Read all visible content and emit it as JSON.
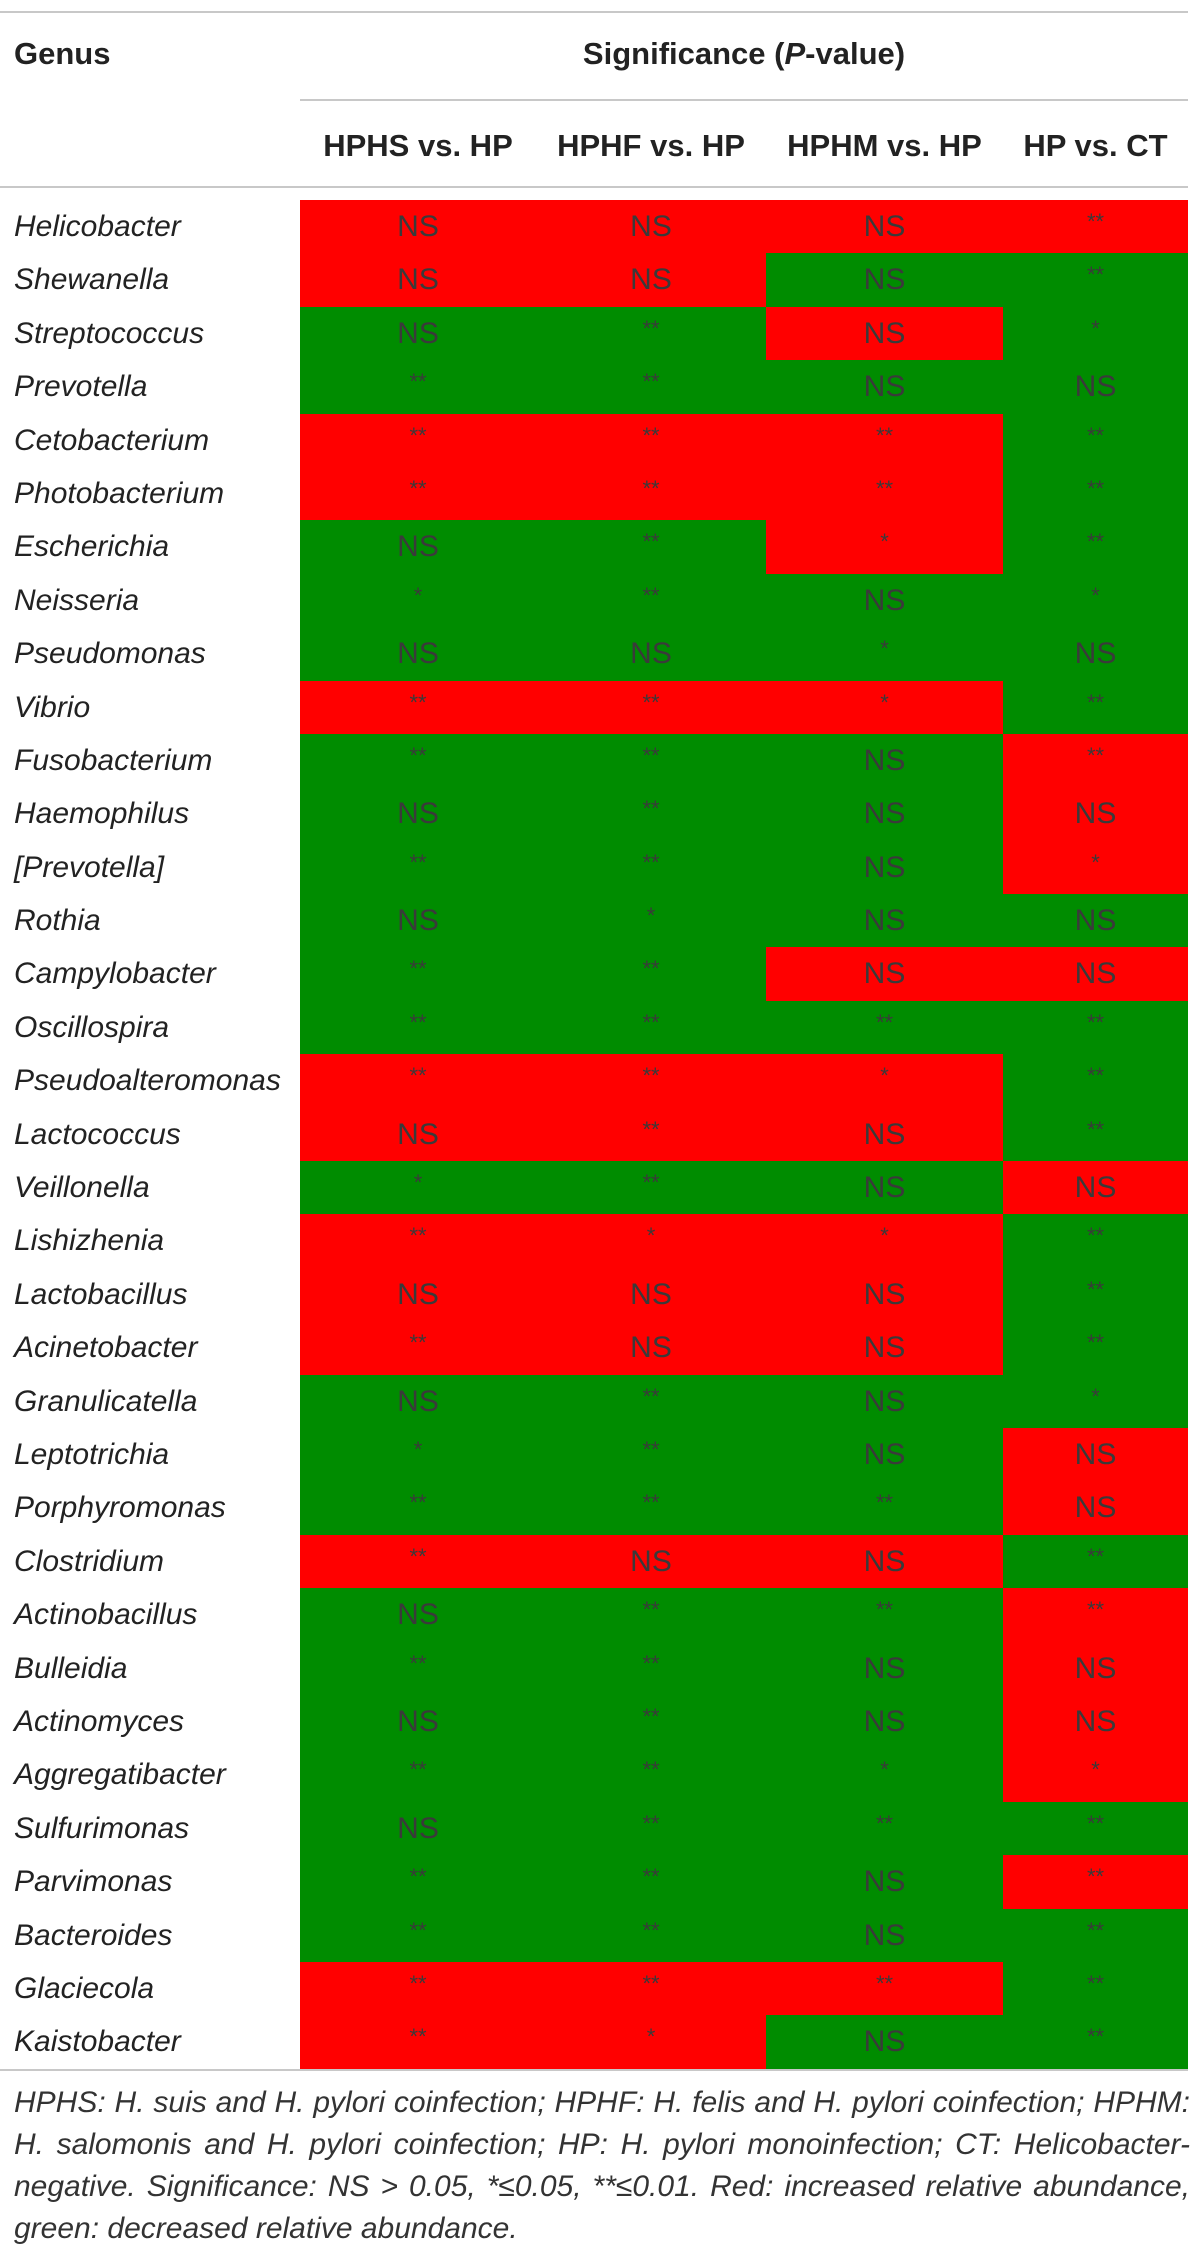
{
  "colors": {
    "increased": "#ff0000",
    "decreased": "#008c00"
  },
  "header": {
    "genus": "Genus",
    "significance": "Significance (P-value)",
    "significance_pre": "Significance (",
    "significance_p": "P",
    "significance_post": "-value)",
    "columns": [
      "HPHS vs. HP",
      "HPHF vs. HP",
      "HPHM vs. HP",
      "HP vs. CT"
    ]
  },
  "rows": [
    {
      "genus": "Helicobacter",
      "values": [
        "NS",
        "NS",
        "NS",
        "**"
      ],
      "colors": [
        "r",
        "r",
        "r",
        "r"
      ]
    },
    {
      "genus": "Shewanella",
      "values": [
        "NS",
        "NS",
        "NS",
        "**"
      ],
      "colors": [
        "r",
        "r",
        "g",
        "g"
      ]
    },
    {
      "genus": "Streptococcus",
      "values": [
        "NS",
        "**",
        "NS",
        "*"
      ],
      "colors": [
        "g",
        "g",
        "r",
        "g"
      ]
    },
    {
      "genus": "Prevotella",
      "values": [
        "**",
        "**",
        "NS",
        "NS"
      ],
      "colors": [
        "g",
        "g",
        "g",
        "g"
      ]
    },
    {
      "genus": "Cetobacterium",
      "values": [
        "**",
        "**",
        "**",
        "**"
      ],
      "colors": [
        "r",
        "r",
        "r",
        "g"
      ]
    },
    {
      "genus": "Photobacterium",
      "values": [
        "**",
        "**",
        "**",
        "**"
      ],
      "colors": [
        "r",
        "r",
        "r",
        "g"
      ]
    },
    {
      "genus": "Escherichia",
      "values": [
        "NS",
        "**",
        "*",
        "**"
      ],
      "colors": [
        "g",
        "g",
        "r",
        "g"
      ]
    },
    {
      "genus": "Neisseria",
      "values": [
        "*",
        "**",
        "NS",
        "*"
      ],
      "colors": [
        "g",
        "g",
        "g",
        "g"
      ]
    },
    {
      "genus": "Pseudomonas",
      "values": [
        "NS",
        "NS",
        "*",
        "NS"
      ],
      "colors": [
        "g",
        "g",
        "g",
        "g"
      ]
    },
    {
      "genus": "Vibrio",
      "values": [
        "**",
        "**",
        "*",
        "**"
      ],
      "colors": [
        "r",
        "r",
        "r",
        "g"
      ]
    },
    {
      "genus": "Fusobacterium",
      "values": [
        "**",
        "**",
        "NS",
        "**"
      ],
      "colors": [
        "g",
        "g",
        "g",
        "r"
      ]
    },
    {
      "genus": "Haemophilus",
      "values": [
        "NS",
        "**",
        "NS",
        "NS"
      ],
      "colors": [
        "g",
        "g",
        "g",
        "r"
      ]
    },
    {
      "genus": "[Prevotella]",
      "values": [
        "**",
        "**",
        "NS",
        "*"
      ],
      "colors": [
        "g",
        "g",
        "g",
        "r"
      ]
    },
    {
      "genus": "Rothia",
      "values": [
        "NS",
        "*",
        "NS",
        "NS"
      ],
      "colors": [
        "g",
        "g",
        "g",
        "g"
      ]
    },
    {
      "genus": "Campylobacter",
      "values": [
        "**",
        "**",
        "NS",
        "NS"
      ],
      "colors": [
        "g",
        "g",
        "r",
        "r"
      ]
    },
    {
      "genus": "Oscillospira",
      "values": [
        "**",
        "**",
        "**",
        "**"
      ],
      "colors": [
        "g",
        "g",
        "g",
        "g"
      ]
    },
    {
      "genus": "Pseudoalteromonas",
      "values": [
        "**",
        "**",
        "*",
        "**"
      ],
      "colors": [
        "r",
        "r",
        "r",
        "g"
      ]
    },
    {
      "genus": "Lactococcus",
      "values": [
        "NS",
        "**",
        "NS",
        "**"
      ],
      "colors": [
        "r",
        "r",
        "r",
        "g"
      ]
    },
    {
      "genus": "Veillonella",
      "values": [
        "*",
        "**",
        "NS",
        "NS"
      ],
      "colors": [
        "g",
        "g",
        "g",
        "r"
      ]
    },
    {
      "genus": "Lishizhenia",
      "values": [
        "**",
        "*",
        "*",
        "**"
      ],
      "colors": [
        "r",
        "r",
        "r",
        "g"
      ]
    },
    {
      "genus": "Lactobacillus",
      "values": [
        "NS",
        "NS",
        "NS",
        "**"
      ],
      "colors": [
        "r",
        "r",
        "r",
        "g"
      ]
    },
    {
      "genus": "Acinetobacter",
      "values": [
        "**",
        "NS",
        "NS",
        "**"
      ],
      "colors": [
        "r",
        "r",
        "r",
        "g"
      ]
    },
    {
      "genus": "Granulicatella",
      "values": [
        "NS",
        "**",
        "NS",
        "*"
      ],
      "colors": [
        "g",
        "g",
        "g",
        "g"
      ]
    },
    {
      "genus": "Leptotrichia",
      "values": [
        "*",
        "**",
        "NS",
        "NS"
      ],
      "colors": [
        "g",
        "g",
        "g",
        "r"
      ]
    },
    {
      "genus": "Porphyromonas",
      "values": [
        "**",
        "**",
        "**",
        "NS"
      ],
      "colors": [
        "g",
        "g",
        "g",
        "r"
      ]
    },
    {
      "genus": "Clostridium",
      "values": [
        "**",
        "NS",
        "NS",
        "**"
      ],
      "colors": [
        "r",
        "r",
        "r",
        "g"
      ]
    },
    {
      "genus": "Actinobacillus",
      "values": [
        "NS",
        "**",
        "**",
        "**"
      ],
      "colors": [
        "g",
        "g",
        "g",
        "r"
      ]
    },
    {
      "genus": "Bulleidia",
      "values": [
        "**",
        "**",
        "NS",
        "NS"
      ],
      "colors": [
        "g",
        "g",
        "g",
        "r"
      ]
    },
    {
      "genus": "Actinomyces",
      "values": [
        "NS",
        "**",
        "NS",
        "NS"
      ],
      "colors": [
        "g",
        "g",
        "g",
        "r"
      ]
    },
    {
      "genus": "Aggregatibacter",
      "values": [
        "**",
        "**",
        "*",
        "*"
      ],
      "colors": [
        "g",
        "g",
        "g",
        "r"
      ]
    },
    {
      "genus": "Sulfurimonas",
      "values": [
        "NS",
        "**",
        "**",
        "**"
      ],
      "colors": [
        "g",
        "g",
        "g",
        "g"
      ]
    },
    {
      "genus": "Parvimonas",
      "values": [
        "**",
        "**",
        "NS",
        "**"
      ],
      "colors": [
        "g",
        "g",
        "g",
        "r"
      ]
    },
    {
      "genus": "Bacteroides",
      "values": [
        "**",
        "**",
        "NS",
        "**"
      ],
      "colors": [
        "g",
        "g",
        "g",
        "g"
      ]
    },
    {
      "genus": "Glaciecola",
      "values": [
        "**",
        "**",
        "**",
        "**"
      ],
      "colors": [
        "r",
        "r",
        "r",
        "g"
      ]
    },
    {
      "genus": "Kaistobacter",
      "values": [
        "**",
        "*",
        "NS",
        "**"
      ],
      "colors": [
        "r",
        "r",
        "g",
        "g"
      ]
    }
  ],
  "footnote": "HPHS: H. suis and H. pylori coinfection; HPHF: H. felis and H. pylori coinfection; HPHM: H. salomonis and H. pylori coinfection; HP: H. pylori monoinfection; CT: Helicobacter-negative. Significance: NS > 0.05, *≤0.05, **≤0.01. Red: increased relative abundance, green: decreased relative abundance."
}
